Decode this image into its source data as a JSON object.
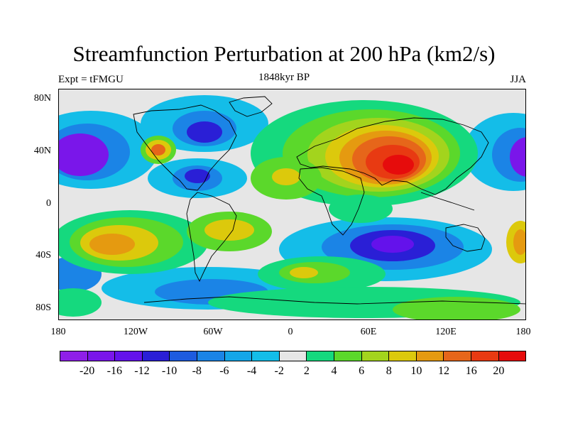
{
  "title": "Streamfunction Perturbation at 200 hPa (km2/s)",
  "subtitle_left": "Expt = tFMGU",
  "subtitle_center": "1848kyr BP",
  "subtitle_right": "JJA",
  "lat_labels": [
    "80N",
    "40N",
    "0",
    "40S",
    "80S"
  ],
  "lon_labels": [
    "180",
    "120W",
    "60W",
    "0",
    "60E",
    "120E",
    "180"
  ],
  "colorbar": {
    "colors": [
      "#8f1fe8",
      "#7a16ea",
      "#6412eb",
      "#2a1fd6",
      "#1d5bdf",
      "#1b84e6",
      "#14a6e8",
      "#14bde8",
      "#e6e6e6",
      "#15d97e",
      "#5bd82b",
      "#a3d41d",
      "#dcc90c",
      "#e59a10",
      "#e6661a",
      "#e83a12",
      "#e60c0c"
    ],
    "labels": [
      "-20",
      "-16",
      "-12",
      "-10",
      "-8",
      "-6",
      "-4",
      "-2",
      "2",
      "4",
      "6",
      "8",
      "10",
      "12",
      "16",
      "20"
    ]
  }
}
